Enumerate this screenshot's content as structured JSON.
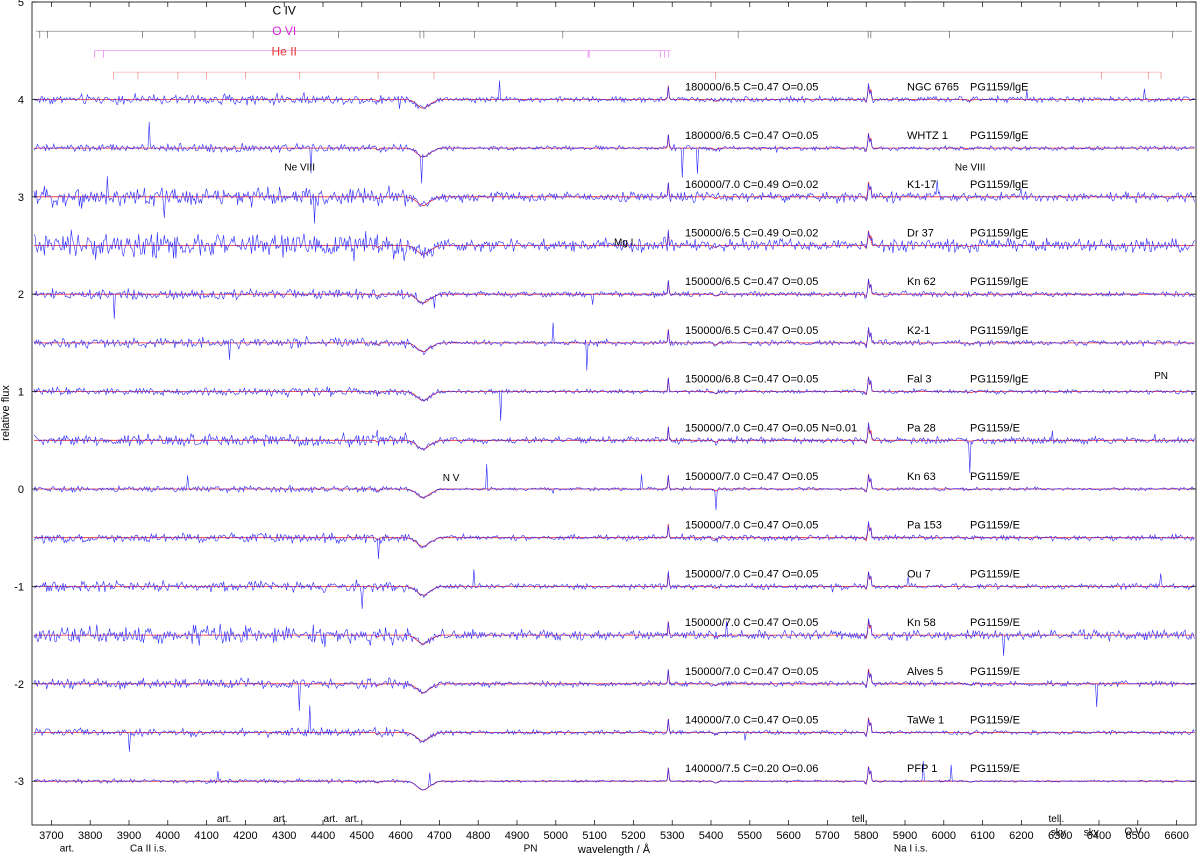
{
  "chart_data": {
    "type": "line",
    "xlabel": "wavelength / Å",
    "ylabel": "relative flux",
    "xlim": [
      3650,
      6650
    ],
    "ylim": [
      -3.45,
      5.0
    ],
    "x_ticks": [
      3700,
      3800,
      3900,
      4000,
      4100,
      4200,
      4300,
      4400,
      4500,
      4600,
      4700,
      4800,
      4900,
      5000,
      5100,
      5200,
      5300,
      5400,
      5500,
      5600,
      5700,
      5800,
      5900,
      6000,
      6100,
      6200,
      6300,
      6400,
      6500,
      6600
    ],
    "y_ticks": [
      5,
      4,
      3,
      2,
      1,
      0,
      -1,
      -2,
      -3
    ],
    "y_tick_labels": [
      "5",
      "4",
      "3",
      "2",
      "1",
      "0",
      "-1",
      "-2",
      "-3"
    ],
    "grid": false,
    "series_colors": {
      "observed": "#2a2aff",
      "model": "#e8202a"
    },
    "spectra": [
      {
        "offset": 4.0,
        "params": "180000/6.5 C=0.47 O=0.05",
        "object": "NGC 6765",
        "class": "PG1159/lgE",
        "noise": 0.05
      },
      {
        "offset": 3.5,
        "params": "180000/6.5 C=0.47 O=0.05",
        "object": "WHTZ 1",
        "class": "PG1159/lgE",
        "noise": 0.04
      },
      {
        "offset": 3.0,
        "params": "160000/7.0 C=0.49 O=0.02",
        "object": "K1-17",
        "class": "PG1159/lgE",
        "noise": 0.09
      },
      {
        "offset": 2.5,
        "params": "150000/6.5 C=0.49 O=0.02",
        "object": "Dr 37",
        "class": "PG1159/lgE",
        "noise": 0.12
      },
      {
        "offset": 2.0,
        "params": "150000/6.5 C=0.47 O=0.05",
        "object": "Kn 62",
        "class": "PG1159/lgE",
        "noise": 0.05
      },
      {
        "offset": 1.5,
        "params": "150000/6.5 C=0.47 O=0.05",
        "object": "K2-1",
        "class": "PG1159/lgE",
        "noise": 0.05
      },
      {
        "offset": 1.0,
        "params": "150000/6.8 C=0.47 O=0.05",
        "object": "Fal 3",
        "class": "PG1159/lgE",
        "noise": 0.04
      },
      {
        "offset": 0.5,
        "params": "150000/7.0 C=0.47 O=0.05 N=0.01",
        "object": "Pa 28",
        "class": "PG1159/E",
        "noise": 0.06
      },
      {
        "offset": 0.0,
        "params": "150000/7.0 C=0.47 O=0.05",
        "object": "Kn 63",
        "class": "PG1159/E",
        "noise": 0.03
      },
      {
        "offset": -0.5,
        "params": "150000/7.0 C=0.47 O=0.05",
        "object": "Pa 153",
        "class": "PG1159/E",
        "noise": 0.05
      },
      {
        "offset": -1.0,
        "params": "150000/7.0 C=0.47 O=0.05",
        "object": "Ou 7",
        "class": "PG1159/E",
        "noise": 0.05
      },
      {
        "offset": -1.5,
        "params": "150000/7.0 C=0.47 O=0.05",
        "object": "Kn 58",
        "class": "PG1159/E",
        "noise": 0.09
      },
      {
        "offset": -2.0,
        "params": "150000/7.0 C=0.47 O=0.05",
        "object": "Alves 5",
        "class": "PG1159/E",
        "noise": 0.05
      },
      {
        "offset": -2.5,
        "params": "140000/7.0 C=0.47 O=0.05",
        "object": "TaWe 1",
        "class": "PG1159/E",
        "noise": 0.04
      },
      {
        "offset": -3.0,
        "params": "140000/7.5 C=0.20 O=0.06",
        "object": "PFP 1",
        "class": "PG1159/E",
        "noise": 0.02
      }
    ],
    "line_ids": [
      {
        "label": "C IV",
        "color": "#000000",
        "label_x": 4300,
        "label_y": 4.87,
        "y": 4.7,
        "from": 3660,
        "to": 6640,
        "ticks": [
          3670,
          3690,
          3935,
          4070,
          4220,
          4440,
          4650,
          4660,
          4790,
          5018,
          5470,
          5805,
          5812,
          6015,
          6590
        ]
      },
      {
        "label": "O VI",
        "color": "#e020e0",
        "label_x": 4300,
        "label_y": 4.66,
        "y": 4.5,
        "from": 3810,
        "to": 5295,
        "ticks": [
          3811,
          3834,
          5083,
          5086,
          5270,
          5280,
          5291
        ]
      },
      {
        "label": "He II",
        "color": "#e03030",
        "label_x": 4300,
        "label_y": 4.45,
        "y": 4.28,
        "from": 3860,
        "to": 6560,
        "ticks": [
          3860,
          3923,
          4026,
          4100,
          4200,
          4339,
          4542,
          4686,
          5412,
          6406,
          6527,
          6560
        ]
      }
    ],
    "annotations": [
      {
        "text": "Ne VIII",
        "x": 4340,
        "y": 3.27,
        "size": 12
      },
      {
        "text": "Ne VIII",
        "x": 6068,
        "y": 3.27,
        "size": 12
      },
      {
        "text": "Mg I",
        "x": 5175,
        "y": 2.5,
        "size": 10
      },
      {
        "text": "N V",
        "x": 4730,
        "y": 0.08,
        "size": 12
      },
      {
        "text": "PN",
        "x": 6560,
        "y": 1.13,
        "size": 10
      },
      {
        "text": "art.",
        "x": 3740,
        "y": -3.72,
        "size": 10
      },
      {
        "text": "Ca II i.s.",
        "x": 3950,
        "y": -3.72,
        "size": 10
      },
      {
        "text": "art.",
        "x": 4145,
        "y": -3.42,
        "size": 10
      },
      {
        "text": "art.",
        "x": 4290,
        "y": -3.42,
        "size": 10
      },
      {
        "text": "art.",
        "x": 4420,
        "y": -3.42,
        "size": 10
      },
      {
        "text": "art.",
        "x": 4475,
        "y": -3.42,
        "size": 10
      },
      {
        "text": "PN",
        "x": 4935,
        "y": -3.72,
        "size": 10
      },
      {
        "text": "tell.",
        "x": 5783,
        "y": -3.42,
        "size": 10
      },
      {
        "text": "Na I i.s.",
        "x": 5915,
        "y": -3.72,
        "size": 10
      },
      {
        "text": "tell.",
        "x": 6290,
        "y": -3.42,
        "size": 10
      },
      {
        "text": "sky",
        "x": 6295,
        "y": -3.56,
        "size": 10
      },
      {
        "text": "sky",
        "x": 6380,
        "y": -3.56,
        "size": 10
      },
      {
        "text": "O V",
        "x": 6488,
        "y": -3.55,
        "size": 12
      }
    ]
  }
}
